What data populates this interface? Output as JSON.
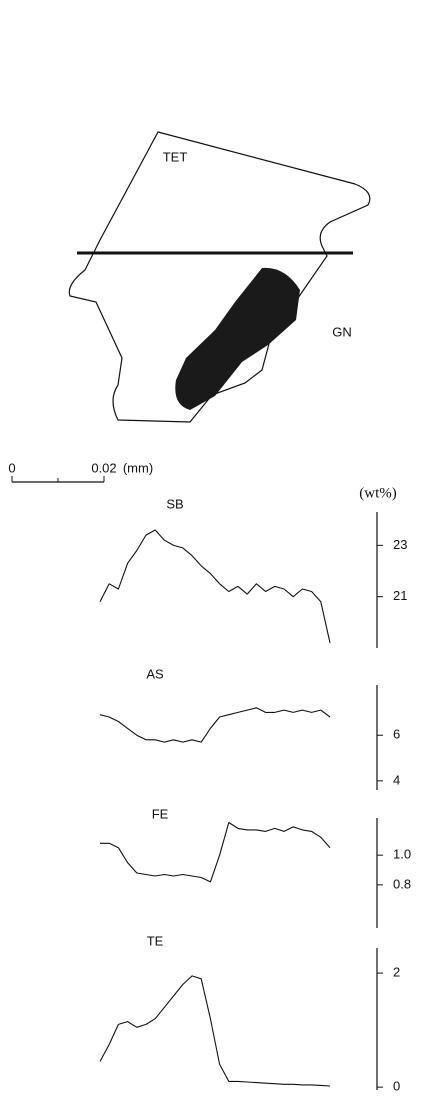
{
  "labels": {
    "grain": "TET",
    "inclusion": "GN"
  },
  "scale_bar": {
    "ticks": [
      {
        "value": 0,
        "label": "0"
      },
      {
        "value": 0.02,
        "label": "0.02"
      }
    ],
    "unit": "(mm)"
  },
  "unit": "(wt%)",
  "chart_data": [
    {
      "type": "line",
      "title": "SB",
      "x": [
        0,
        0.002,
        0.004,
        0.006,
        0.008,
        0.01,
        0.012,
        0.014,
        0.016,
        0.018,
        0.02,
        0.022,
        0.024,
        0.026,
        0.028,
        0.03,
        0.032,
        0.034,
        0.036,
        0.038,
        0.04,
        0.042,
        0.044,
        0.046,
        0.048,
        0.05
      ],
      "values": [
        20.8,
        21.5,
        21.3,
        22.3,
        22.8,
        23.4,
        23.6,
        23.2,
        23.0,
        22.9,
        22.6,
        22.2,
        21.9,
        21.5,
        21.2,
        21.4,
        21.1,
        21.5,
        21.2,
        21.4,
        21.3,
        21.0,
        21.3,
        21.2,
        20.8,
        19.2
      ],
      "ylim": [
        19.0,
        24.3
      ],
      "yticks": [
        23,
        21
      ],
      "color": "#111111"
    },
    {
      "type": "line",
      "title": "AS",
      "x": [
        0,
        0.002,
        0.004,
        0.006,
        0.008,
        0.01,
        0.012,
        0.014,
        0.016,
        0.018,
        0.02,
        0.022,
        0.024,
        0.026,
        0.028,
        0.03,
        0.032,
        0.034,
        0.036,
        0.038,
        0.04,
        0.042,
        0.044,
        0.046,
        0.048,
        0.05
      ],
      "values": [
        6.9,
        6.8,
        6.6,
        6.3,
        6.0,
        5.8,
        5.8,
        5.7,
        5.8,
        5.7,
        5.8,
        5.7,
        6.3,
        6.8,
        6.9,
        7.0,
        7.1,
        7.2,
        7.0,
        7.0,
        7.1,
        7.0,
        7.1,
        7.0,
        7.1,
        6.8
      ],
      "ylim": [
        3.6,
        8.2
      ],
      "yticks": [
        6,
        4
      ],
      "color": "#111111"
    },
    {
      "type": "line",
      "title": "FE",
      "x": [
        0,
        0.002,
        0.004,
        0.006,
        0.008,
        0.01,
        0.012,
        0.014,
        0.016,
        0.018,
        0.02,
        0.022,
        0.024,
        0.026,
        0.028,
        0.03,
        0.032,
        0.034,
        0.036,
        0.038,
        0.04,
        0.042,
        0.044,
        0.046,
        0.048,
        0.05
      ],
      "values": [
        1.08,
        1.08,
        1.05,
        0.95,
        0.88,
        0.87,
        0.86,
        0.87,
        0.86,
        0.87,
        0.86,
        0.85,
        0.82,
        1.0,
        1.22,
        1.18,
        1.17,
        1.17,
        1.16,
        1.18,
        1.16,
        1.19,
        1.17,
        1.16,
        1.12,
        1.05
      ],
      "ylim": [
        0.51,
        1.25
      ],
      "yticks": [
        {
          "value": 1.0,
          "label": "1.0"
        },
        {
          "value": 0.8,
          "label": "0.8"
        }
      ],
      "color": "#111111"
    },
    {
      "type": "line",
      "title": "TE",
      "x": [
        0,
        0.002,
        0.004,
        0.006,
        0.008,
        0.01,
        0.012,
        0.014,
        0.016,
        0.018,
        0.02,
        0.022,
        0.024,
        0.026,
        0.028,
        0.03,
        0.032,
        0.034,
        0.036,
        0.038,
        0.04,
        0.042,
        0.044,
        0.046,
        0.048,
        0.05
      ],
      "values": [
        0.45,
        0.75,
        1.1,
        1.15,
        1.05,
        1.1,
        1.2,
        1.4,
        1.6,
        1.8,
        1.95,
        1.9,
        1.2,
        0.4,
        0.1,
        0.1,
        0.09,
        0.08,
        0.07,
        0.06,
        0.05,
        0.05,
        0.04,
        0.04,
        0.03,
        0.02
      ],
      "ylim": [
        -0.05,
        2.44
      ],
      "yticks": [
        2,
        0
      ],
      "color": "#111111"
    }
  ]
}
